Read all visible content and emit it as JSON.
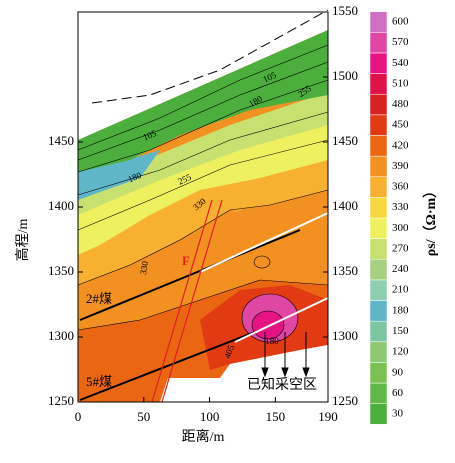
{
  "chart_data": {
    "type": "contour",
    "xlabel": "距离/m",
    "ylabel": "高程/m",
    "xlim": [
      0,
      190
    ],
    "xticks": [
      0,
      50,
      100,
      150,
      190
    ],
    "ylim": [
      1250,
      1550
    ],
    "yticks": [
      1250,
      1300,
      1350,
      1400,
      1450
    ],
    "y2lim": [
      1250,
      1550
    ],
    "y2ticks": [
      1250,
      1300,
      1350,
      1400,
      1450,
      1500,
      1550
    ],
    "colorbar": {
      "label": "ρs/（Ω·m）",
      "ticks": [
        30,
        60,
        90,
        120,
        150,
        180,
        210,
        240,
        270,
        300,
        330,
        360,
        390,
        420,
        450,
        480,
        510,
        540,
        570,
        600
      ],
      "colors": [
        "#4cae3c",
        "#62b848",
        "#7cc054",
        "#8ec872",
        "#7ec6a2",
        "#5eb6c8",
        "#8ecfb2",
        "#a8d082",
        "#c8e070",
        "#eef060",
        "#f8d840",
        "#f8b030",
        "#f29022",
        "#ea6612",
        "#e23a12",
        "#d82222",
        "#e0124a",
        "#e61482",
        "#e046a4",
        "#d070c4"
      ]
    },
    "contour_labels": [
      105,
      180,
      255,
      330,
      330,
      405,
      180,
      255,
      105,
      180
    ],
    "annotations": {
      "fault": "F",
      "coal2": "2#煤",
      "coal5": "5#煤",
      "goaf": "已知采空区"
    }
  }
}
